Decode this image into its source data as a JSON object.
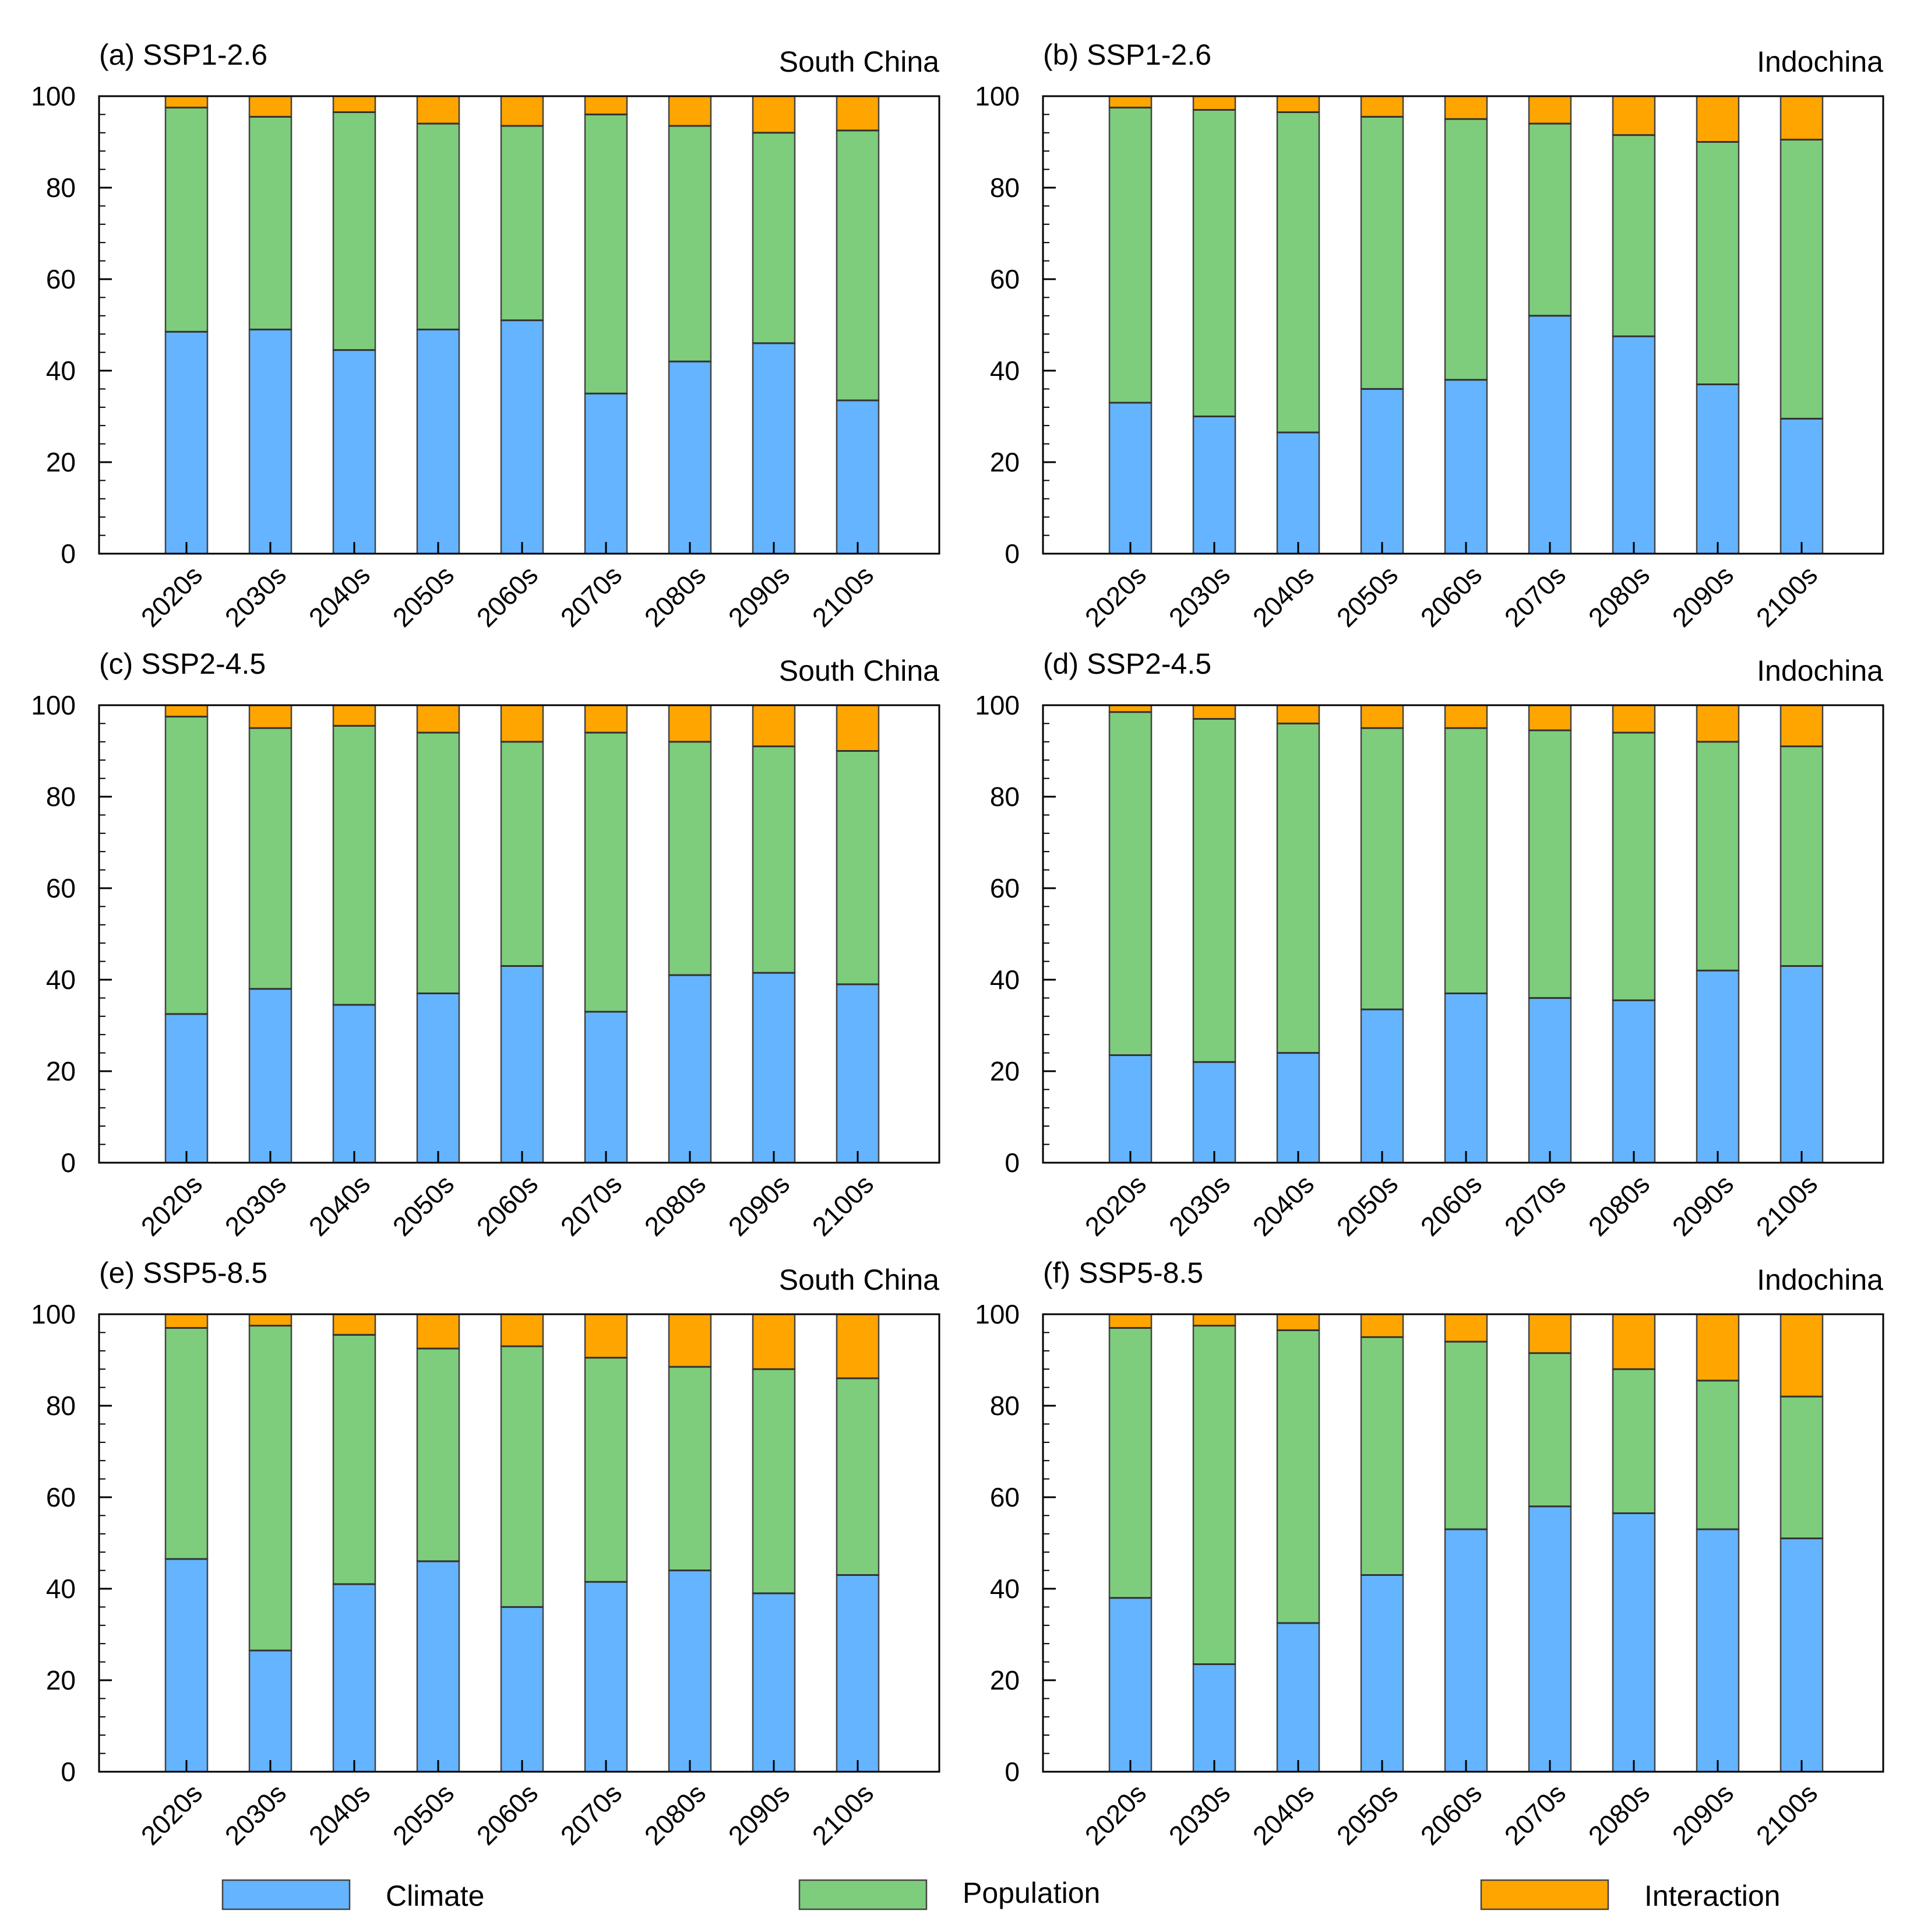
{
  "figure": {
    "title": "",
    "legend": {
      "placement": "bottom",
      "entries": [
        {
          "label": "Climate",
          "color": "#64b4ff"
        },
        {
          "label": "Population",
          "color": "#7ecd7c"
        },
        {
          "label": "Interaction",
          "color": "#ffa500"
        }
      ]
    }
  },
  "chart_data": [
    {
      "id": "a",
      "type": "bar",
      "stacked": true,
      "title": "(a) SSP1-2.6",
      "region": "South China",
      "categories": [
        "2020s",
        "2030s",
        "2040s",
        "2050s",
        "2060s",
        "2070s",
        "2080s",
        "2090s",
        "2100s"
      ],
      "ylim": [
        0,
        100
      ],
      "yticks": [
        0,
        20,
        40,
        60,
        80,
        100
      ],
      "series": [
        {
          "name": "Climate",
          "values": [
            48.5,
            49,
            44.5,
            49,
            51,
            35,
            42,
            46,
            33.5
          ]
        },
        {
          "name": "Population",
          "values": [
            49,
            46.5,
            52,
            45,
            42.5,
            61,
            51.5,
            46,
            59
          ]
        },
        {
          "name": "Interaction",
          "values": [
            2.5,
            4.5,
            3.5,
            6,
            6.5,
            4,
            6.5,
            8,
            7.5
          ]
        }
      ]
    },
    {
      "id": "b",
      "type": "bar",
      "stacked": true,
      "title": "(b) SSP1-2.6",
      "region": "Indochina",
      "categories": [
        "2020s",
        "2030s",
        "2040s",
        "2050s",
        "2060s",
        "2070s",
        "2080s",
        "2090s",
        "2100s"
      ],
      "ylim": [
        0,
        100
      ],
      "yticks": [
        0,
        20,
        40,
        60,
        80,
        100
      ],
      "series": [
        {
          "name": "Climate",
          "values": [
            33,
            30,
            26.5,
            36,
            38,
            52,
            47.5,
            37,
            29.5
          ]
        },
        {
          "name": "Population",
          "values": [
            64.5,
            67,
            70,
            59.5,
            57,
            42,
            44,
            53,
            61
          ]
        },
        {
          "name": "Interaction",
          "values": [
            2.5,
            3,
            3.5,
            4.5,
            5,
            6,
            8.5,
            10,
            9.5
          ]
        }
      ]
    },
    {
      "id": "c",
      "type": "bar",
      "stacked": true,
      "title": "(c) SSP2-4.5",
      "region": "South China",
      "categories": [
        "2020s",
        "2030s",
        "2040s",
        "2050s",
        "2060s",
        "2070s",
        "2080s",
        "2090s",
        "2100s"
      ],
      "ylim": [
        0,
        100
      ],
      "yticks": [
        0,
        20,
        40,
        60,
        80,
        100
      ],
      "series": [
        {
          "name": "Climate",
          "values": [
            32.5,
            38,
            34.5,
            37,
            43,
            33,
            41,
            41.5,
            39
          ]
        },
        {
          "name": "Population",
          "values": [
            65,
            57,
            61,
            57,
            49,
            61,
            51,
            49.5,
            51
          ]
        },
        {
          "name": "Interaction",
          "values": [
            2.5,
            5,
            4.5,
            6,
            8,
            6,
            8,
            9,
            10
          ]
        }
      ]
    },
    {
      "id": "d",
      "type": "bar",
      "stacked": true,
      "title": "(d) SSP2-4.5",
      "region": "Indochina",
      "categories": [
        "2020s",
        "2030s",
        "2040s",
        "2050s",
        "2060s",
        "2070s",
        "2080s",
        "2090s",
        "2100s"
      ],
      "ylim": [
        0,
        100
      ],
      "yticks": [
        0,
        20,
        40,
        60,
        80,
        100
      ],
      "series": [
        {
          "name": "Climate",
          "values": [
            23.5,
            22,
            24,
            33.5,
            37,
            36,
            35.5,
            42,
            43
          ]
        },
        {
          "name": "Population",
          "values": [
            75,
            75,
            72,
            61.5,
            58,
            58.5,
            58.5,
            50,
            48
          ]
        },
        {
          "name": "Interaction",
          "values": [
            1.5,
            3,
            4,
            5,
            5,
            5.5,
            6,
            8,
            9
          ]
        }
      ]
    },
    {
      "id": "e",
      "type": "bar",
      "stacked": true,
      "title": "(e) SSP5-8.5",
      "region": "South China",
      "categories": [
        "2020s",
        "2030s",
        "2040s",
        "2050s",
        "2060s",
        "2070s",
        "2080s",
        "2090s",
        "2100s"
      ],
      "ylim": [
        0,
        100
      ],
      "yticks": [
        0,
        20,
        40,
        60,
        80,
        100
      ],
      "series": [
        {
          "name": "Climate",
          "values": [
            46.5,
            26.5,
            41,
            46,
            36,
            41.5,
            44,
            39,
            43
          ]
        },
        {
          "name": "Population",
          "values": [
            50.5,
            71,
            54.5,
            46.5,
            57,
            49,
            44.5,
            49,
            43
          ]
        },
        {
          "name": "Interaction",
          "values": [
            3,
            2.5,
            4.5,
            7.5,
            7,
            9.5,
            11.5,
            12,
            14
          ]
        }
      ]
    },
    {
      "id": "f",
      "type": "bar",
      "stacked": true,
      "title": "(f) SSP5-8.5",
      "region": "Indochina",
      "categories": [
        "2020s",
        "2030s",
        "2040s",
        "2050s",
        "2060s",
        "2070s",
        "2080s",
        "2090s",
        "2100s"
      ],
      "ylim": [
        0,
        100
      ],
      "yticks": [
        0,
        20,
        40,
        60,
        80,
        100
      ],
      "series": [
        {
          "name": "Climate",
          "values": [
            38,
            23.5,
            32.5,
            43,
            53,
            58,
            56.5,
            53,
            51
          ]
        },
        {
          "name": "Population",
          "values": [
            59,
            74,
            64,
            52,
            41,
            33.5,
            31.5,
            32.5,
            31
          ]
        },
        {
          "name": "Interaction",
          "values": [
            3,
            2.5,
            3.5,
            5,
            6,
            8.5,
            12,
            14.5,
            18
          ]
        }
      ]
    }
  ]
}
